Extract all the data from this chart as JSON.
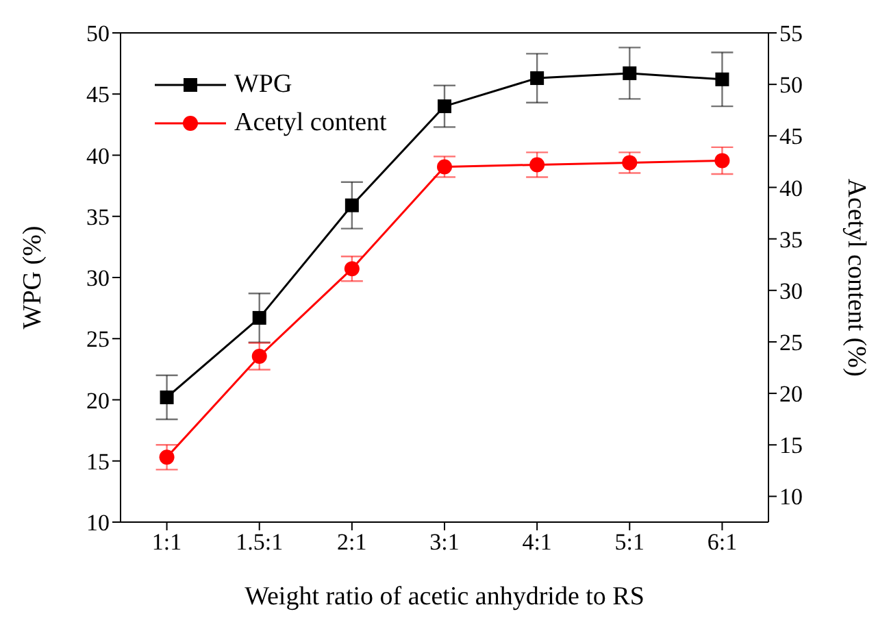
{
  "chart_data": {
    "type": "line",
    "xlabel": "Weight ratio of acetic anhydride to RS",
    "ylabel": "WPG (%)",
    "y2label": "Acetyl content (%)",
    "categories": [
      "1:1",
      "1.5:1",
      "2:1",
      "3:1",
      "4:1",
      "5:1",
      "6:1"
    ],
    "ylim": [
      10,
      50
    ],
    "yticks": [
      10,
      15,
      20,
      25,
      30,
      35,
      40,
      45,
      50
    ],
    "y2lim": [
      7.5,
      55
    ],
    "y2ticks": [
      10,
      15,
      20,
      25,
      30,
      35,
      40,
      45,
      50,
      55
    ],
    "legend": "top left",
    "grid": false,
    "series": [
      {
        "name": "WPG",
        "color": "#000000",
        "marker": "square",
        "values": [
          20.2,
          26.7,
          35.9,
          44.0,
          46.3,
          46.7,
          46.2
        ],
        "errors": [
          1.8,
          2.0,
          1.9,
          1.7,
          2.0,
          2.1,
          2.2
        ]
      },
      {
        "name": "Acetyl content",
        "color": "#ff0000",
        "marker": "circle",
        "axis": "y2",
        "values": [
          13.8,
          23.6,
          32.1,
          42.0,
          42.2,
          42.4,
          42.6
        ],
        "errors": [
          1.2,
          1.3,
          1.2,
          1.0,
          1.2,
          1.0,
          1.3
        ]
      }
    ]
  }
}
